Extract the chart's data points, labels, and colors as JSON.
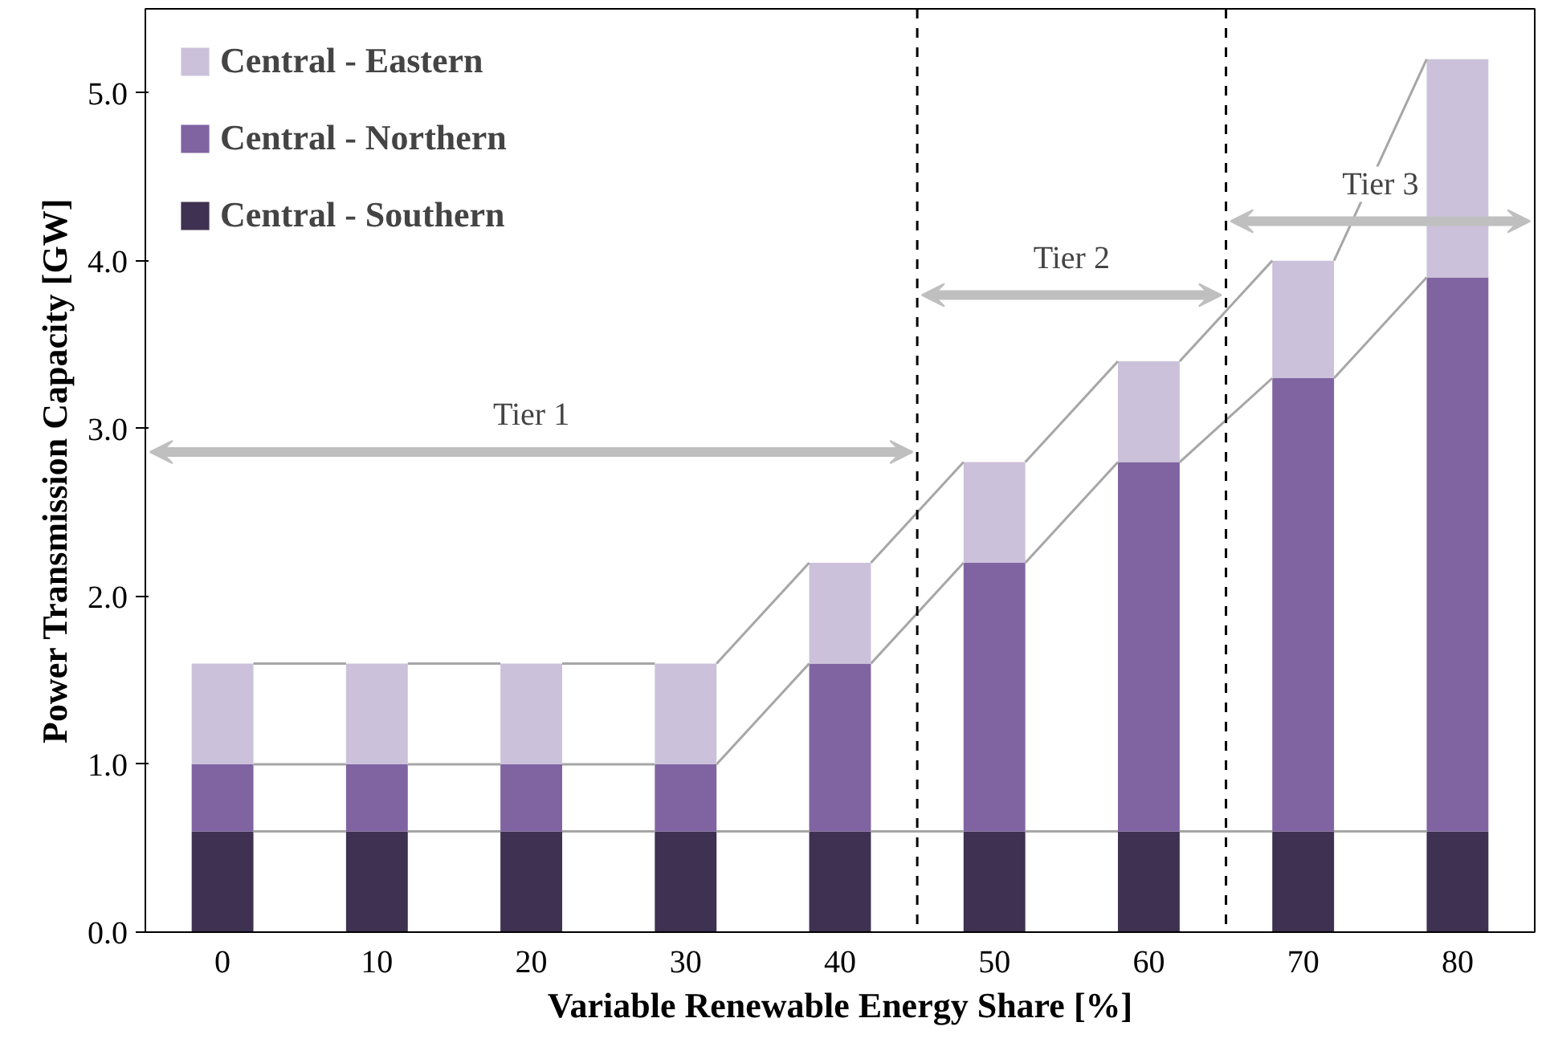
{
  "chart_data": {
    "type": "bar",
    "stacked": true,
    "xlabel": "Variable Renewable Energy Share [%]",
    "ylabel": "Power Transmission Capacity [GW]",
    "x": [
      0,
      10,
      20,
      30,
      40,
      50,
      60,
      70,
      80
    ],
    "xlim": [
      -5,
      85
    ],
    "xticks": [
      0,
      10,
      20,
      30,
      40,
      50,
      60,
      70,
      80
    ],
    "ylim": [
      0,
      5.5
    ],
    "yticks": [
      {
        "value": 0,
        "label": "0.0"
      },
      {
        "value": 1,
        "label": "1.0"
      },
      {
        "value": 2,
        "label": "2.0"
      },
      {
        "value": 3,
        "label": "3.0"
      },
      {
        "value": 4,
        "label": "4.0"
      },
      {
        "value": 5,
        "label": "5.0"
      }
    ],
    "series": [
      {
        "name": "Central - Southern",
        "color": "#3f3151",
        "values": [
          0.6,
          0.6,
          0.6,
          0.6,
          0.6,
          0.6,
          0.6,
          0.6,
          0.6
        ]
      },
      {
        "name": "Central - Northern",
        "color": "#8064a2",
        "values": [
          0.4,
          0.4,
          0.4,
          0.4,
          1.0,
          1.6,
          2.2,
          2.7,
          3.3
        ]
      },
      {
        "name": "Central - Eastern",
        "color": "#ccc1da",
        "values": [
          0.6,
          0.6,
          0.6,
          0.6,
          0.6,
          0.6,
          0.6,
          0.7,
          1.3
        ]
      }
    ],
    "ref_lines": [
      {
        "axis": "x",
        "value": 45,
        "line_style": "dashed",
        "color": "#000000"
      },
      {
        "axis": "x",
        "value": 65,
        "line_style": "dashed",
        "color": "#000000"
      }
    ],
    "annotations": [
      "Tier 1",
      "Tier 2",
      "Tier 3"
    ],
    "legend": "top left",
    "grid": false
  }
}
